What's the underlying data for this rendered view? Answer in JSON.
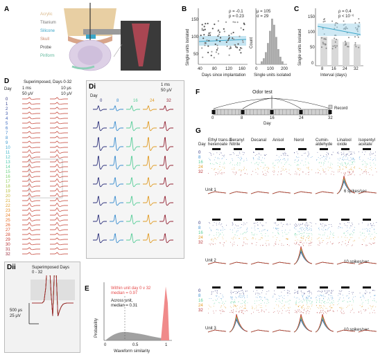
{
  "panels": {
    "A": {
      "label": "A",
      "layers": [
        "Acrylic",
        "Titanium",
        "Silicone",
        "Skull",
        "Probe",
        "Piriform"
      ],
      "layer_colors": [
        "#d9b88a",
        "#8a8a8a",
        "#3aa6c9",
        "#d8a58a",
        "#444444",
        "#8ecfb8"
      ]
    },
    "B": {
      "label": "B",
      "left": {
        "xlabel": "Days since implantation",
        "ylabel": "Single units isolated",
        "xticks": [
          "40",
          "80",
          "120",
          "160"
        ],
        "yticks": [
          "50",
          "100",
          "150"
        ],
        "rho": "ρ = -0.1",
        "p": "p = 0.23"
      },
      "right": {
        "xlabel": "Single units isolated",
        "ylabel": "Count",
        "xticks": [
          "0",
          "100",
          "200"
        ],
        "yticks": [
          "0",
          "10",
          "20"
        ],
        "mu": "μ = 105",
        "sigma": "σ = 29"
      }
    },
    "C": {
      "label": "C",
      "xlabel": "Interval (days)",
      "ylabel": "Single units isolated",
      "xticks": [
        "8",
        "16",
        "24",
        "32"
      ],
      "yticks": [
        "0",
        "50",
        "100",
        "150"
      ],
      "rho": "ρ = 0.4",
      "p": "p < 10⁻⁶"
    },
    "D": {
      "label": "D",
      "title": "Superimposed, Days 0-32",
      "day_header": "Day",
      "scale_time_a": "1 ms",
      "scale_volt_a": "50 μV",
      "scale_time_b": "10 μs",
      "scale_volt_b": "10 μV",
      "days": [
        "0",
        "1",
        "2",
        "3",
        "4",
        "5",
        "6",
        "7",
        "8",
        "9",
        "10",
        "11",
        "12",
        "13",
        "14",
        "15",
        "16",
        "17",
        "18",
        "19",
        "20",
        "21",
        "22",
        "23",
        "24",
        "25",
        "26",
        "27",
        "28",
        "29",
        "30",
        "31",
        "32"
      ],
      "day_colors": [
        "#2b2f7a",
        "#2f3a8a",
        "#33469a",
        "#3751a8",
        "#3a5cb4",
        "#3b68bf",
        "#3b74c6",
        "#3a80cc",
        "#3a8dcf",
        "#399ad0",
        "#39a7cf",
        "#3bb3c8",
        "#3fbfbf",
        "#48c7ae",
        "#56cd98",
        "#67d081",
        "#79d06b",
        "#8ecd58",
        "#a3c748",
        "#b6bf3a",
        "#c7b530",
        "#d5a828",
        "#e09a22",
        "#e68b1f",
        "#ea7b1e",
        "#e96b1f",
        "#e45c22",
        "#dc4e26",
        "#d1422a",
        "#c3372e",
        "#b42f31",
        "#a32833",
        "#932233"
      ]
    },
    "Di": {
      "label": "Di",
      "day_header": "Day",
      "scale_time": "1 ms",
      "scale_volt": "50 μV",
      "days": [
        "0",
        "8",
        "16",
        "24",
        "32"
      ],
      "colors": [
        "#2b2f7a",
        "#3a8dcf",
        "#56cd98",
        "#e09a22",
        "#932233"
      ]
    },
    "Dii": {
      "label": "Dii",
      "title": "Superimposed Days 0 - 32",
      "scale_time": "500 μs",
      "scale_volt": "25 μV"
    },
    "E": {
      "label": "E",
      "xlabel": "Waveform similarity",
      "ylabel": "Probability",
      "xticks": [
        "0",
        "0.5",
        "1"
      ],
      "within": "Within unit day 0 v 32",
      "within_median": "median = 0.97",
      "across": "Across unit,",
      "across_median": "median = 0.31",
      "within_color": "#e64b4b",
      "across_color": "#555555"
    },
    "F": {
      "label": "F",
      "title": "Odor test",
      "xlabel": "Day",
      "legend": "Record",
      "ticks": [
        "0",
        "8",
        "16",
        "24",
        "32"
      ]
    },
    "G": {
      "label": "G",
      "day_header": "Day",
      "odors": [
        "Ethyl trans-3-hexenoate",
        "Geranyl Nitrile",
        "Decanal",
        "Anisol",
        "Nerol",
        "Cumin-aldehyde",
        "Linalool oxide",
        "Isopentyl acetate"
      ],
      "odor_lines": [
        [
          "Ethyl trans-3-",
          "hexenoate"
        ],
        [
          "Geranyl",
          "Nitrile"
        ],
        [
          "Decanal",
          ""
        ],
        [
          "Anisol",
          ""
        ],
        [
          "Nerol",
          ""
        ],
        [
          "Cumin-",
          "aldehyde"
        ],
        [
          "Linalool",
          "oxide"
        ],
        [
          "Isopentyl",
          "acetate"
        ]
      ],
      "days": [
        "0",
        "8",
        "16",
        "24",
        "32"
      ],
      "units": [
        {
          "name": "Unit 1",
          "scale": "6 spikes/sec"
        },
        {
          "name": "Unit 2",
          "scale": "10 spikes/sec"
        },
        {
          "name": "Unit 3",
          "scale": "10 spikes/sec"
        }
      ]
    }
  }
}
